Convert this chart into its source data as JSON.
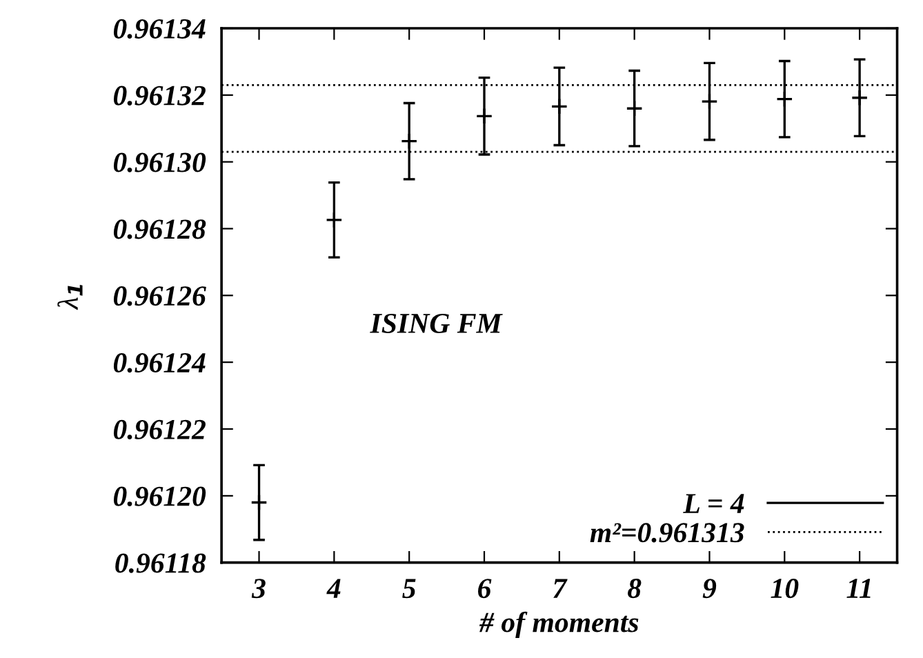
{
  "chart_data": {
    "type": "scatter",
    "xlabel": "# of moments",
    "ylabel": "λ$_{1}$",
    "x": [
      3,
      4,
      5,
      6,
      7,
      8,
      9,
      10,
      11
    ],
    "series": [
      {
        "name": "L = 4",
        "color": "#000000",
        "values": [
          0.961198,
          0.9612826,
          0.9613062,
          0.9613137,
          0.9613166,
          0.961316,
          0.9613181,
          0.9613188,
          0.9613192
        ],
        "errors": [
          1.12e-05,
          1.12e-05,
          1.14e-05,
          1.15e-05,
          1.16e-05,
          1.13e-05,
          1.15e-05,
          1.14e-05,
          1.15e-05
        ]
      }
    ],
    "ref_lines": [
      {
        "axis": "y",
        "value": 0.961323,
        "color": "#000000",
        "line_style": "dotted"
      },
      {
        "axis": "y",
        "value": 0.961303,
        "color": "#000000",
        "line_style": "dotted"
      }
    ],
    "marker": "cross",
    "annotations": [
      "ISING FM",
      "m²=0.961313"
    ],
    "xlim": [
      2.5,
      11.5
    ],
    "xticks": [
      3,
      4,
      5,
      6,
      7,
      8,
      9,
      10,
      11
    ],
    "ylim": [
      0.96118,
      0.96134
    ],
    "yticks": [
      0.96118,
      {
        "value": 0.9612,
        "label": "0.96120"
      },
      0.96122,
      0.96124,
      0.96126,
      0.96128,
      {
        "value": 0.9613,
        "label": "0.96130"
      },
      0.96132,
      0.96134
    ],
    "grid": false,
    "legend": "bottom right"
  }
}
